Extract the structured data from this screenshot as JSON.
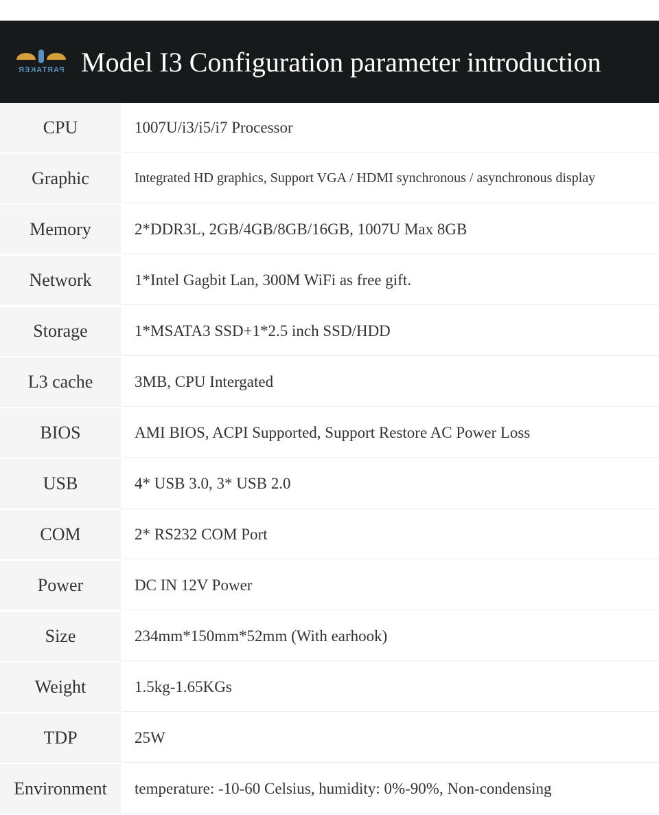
{
  "header": {
    "title": "Model I3 Configuration parameter introduction",
    "logo_text": "PARTAKER",
    "background_color": "#17191b",
    "title_color": "#ffffff"
  },
  "table": {
    "label_bg": "#f5f5f5",
    "value_bg": "#ffffff",
    "border_color": "#ffffff",
    "rows": [
      {
        "label": "CPU",
        "value": "1007U/i3/i5/i7 Processor"
      },
      {
        "label": "Graphic",
        "value": "Integrated HD graphics, Support VGA / HDMI synchronous / asynchronous display"
      },
      {
        "label": "Memory",
        "value": "2*DDR3L, 2GB/4GB/8GB/16GB, 1007U Max 8GB"
      },
      {
        "label": "Network",
        "value": "1*Intel Gagbit Lan, 300M WiFi as free gift."
      },
      {
        "label": "Storage",
        "value": "1*MSATA3 SSD+1*2.5 inch SSD/HDD"
      },
      {
        "label": "L3 cache",
        "value": "3MB, CPU Intergated"
      },
      {
        "label": "BIOS",
        "value": "AMI BIOS, ACPI Supported, Support Restore AC Power Loss"
      },
      {
        "label": "USB",
        "value": "4* USB 3.0, 3* USB 2.0"
      },
      {
        "label": "COM",
        "value": "2* RS232  COM  Port"
      },
      {
        "label": "Power",
        "value": "DC IN 12V Power"
      },
      {
        "label": "Size",
        "value": "234mm*150mm*52mm (With earhook)"
      },
      {
        "label": "Weight",
        "value": "1.5kg-1.65KGs"
      },
      {
        "label": "TDP",
        "value": "25W"
      },
      {
        "label": "Environment",
        "value": "temperature: -10-60 Celsius, humidity: 0%-90%, Non-condensing"
      }
    ]
  }
}
